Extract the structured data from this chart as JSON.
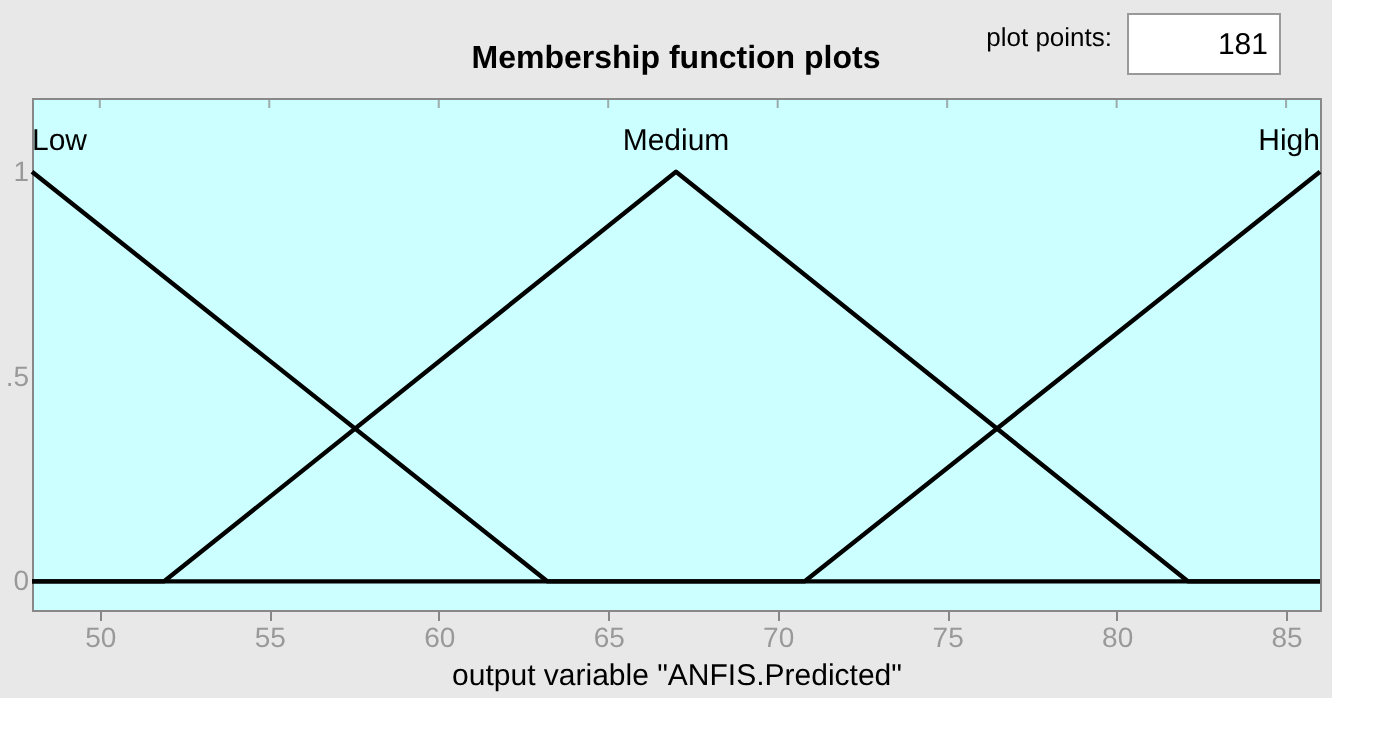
{
  "chart_data": {
    "type": "line",
    "title": "Membership function plots",
    "xlabel": "output variable \"ANFIS.Predicted\"",
    "annotations": [
      "plot points:",
      "181"
    ],
    "series": [
      {
        "name": "Low",
        "color": "#000000",
        "x": [
          48,
          63.2,
          86
        ],
        "values": [
          1,
          0,
          0
        ]
      },
      {
        "name": "Medium",
        "color": "#000000",
        "x": [
          48,
          51.9,
          67,
          82.1,
          86
        ],
        "values": [
          0,
          0,
          1,
          0,
          0
        ]
      },
      {
        "name": "High",
        "color": "#000000",
        "x": [
          48,
          70.8,
          86
        ],
        "values": [
          0,
          0,
          1
        ]
      }
    ],
    "xlim": [
      48,
      86
    ],
    "xticks": [
      50,
      55,
      60,
      65,
      70,
      75,
      80,
      85
    ],
    "ylim": [
      -0.07,
      1.18
    ],
    "yticks": [
      0,
      {
        "value": 0.5,
        "label": ".5"
      },
      1
    ],
    "grid": false,
    "legend": false,
    "line_style": "solid"
  }
}
